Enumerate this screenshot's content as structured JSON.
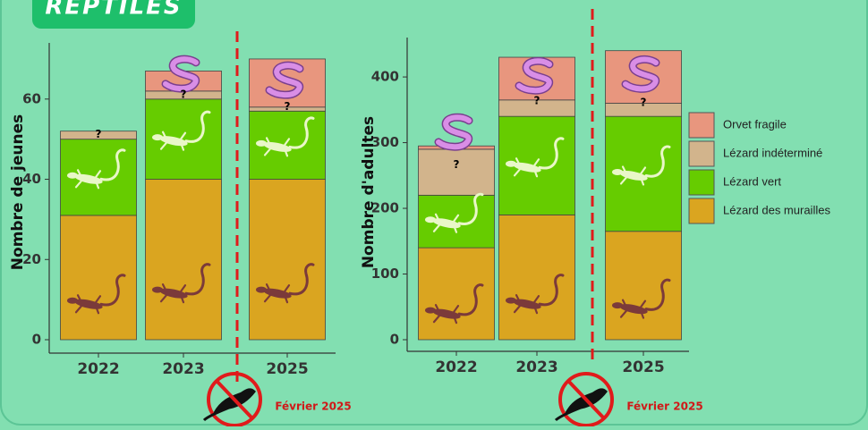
{
  "badge": "REPTILES",
  "event_label": "Février 2025",
  "unknown_label": "?",
  "chart_data": [
    {
      "type": "stacked_bar",
      "y_label": "Nombre de jeunes",
      "categories": [
        "2022",
        "2023",
        "2025"
      ],
      "ylim": [
        0,
        74
      ],
      "yticks": [
        0,
        20,
        40,
        60
      ],
      "series": [
        {
          "color": "#e8967e",
          "values": [
            0,
            5,
            12
          ]
        },
        {
          "color": "#d2b48c",
          "values": [
            2,
            2,
            1
          ]
        },
        {
          "color": "#66cc00",
          "values": [
            19,
            20,
            17
          ]
        },
        {
          "color": "#daa520",
          "values": [
            31,
            40,
            40
          ]
        }
      ]
    },
    {
      "type": "stacked_bar",
      "y_label": "Nombre d'adultes",
      "categories": [
        "2022",
        "2023",
        "2025"
      ],
      "ylim": [
        0,
        460
      ],
      "yticks": [
        0,
        100,
        200,
        300,
        400
      ],
      "legend": "right",
      "series": [
        {
          "name": "Orvet fragile",
          "color": "#e8967e",
          "values": [
            5,
            65,
            80
          ]
        },
        {
          "name": "Lézard indéterminé",
          "color": "#d2b48c",
          "values": [
            70,
            25,
            20
          ]
        },
        {
          "name": "Lézard vert",
          "color": "#66cc00",
          "values": [
            80,
            150,
            175
          ]
        },
        {
          "name": "Lézard des murailles",
          "color": "#daa520",
          "values": [
            140,
            190,
            165
          ]
        }
      ]
    }
  ]
}
